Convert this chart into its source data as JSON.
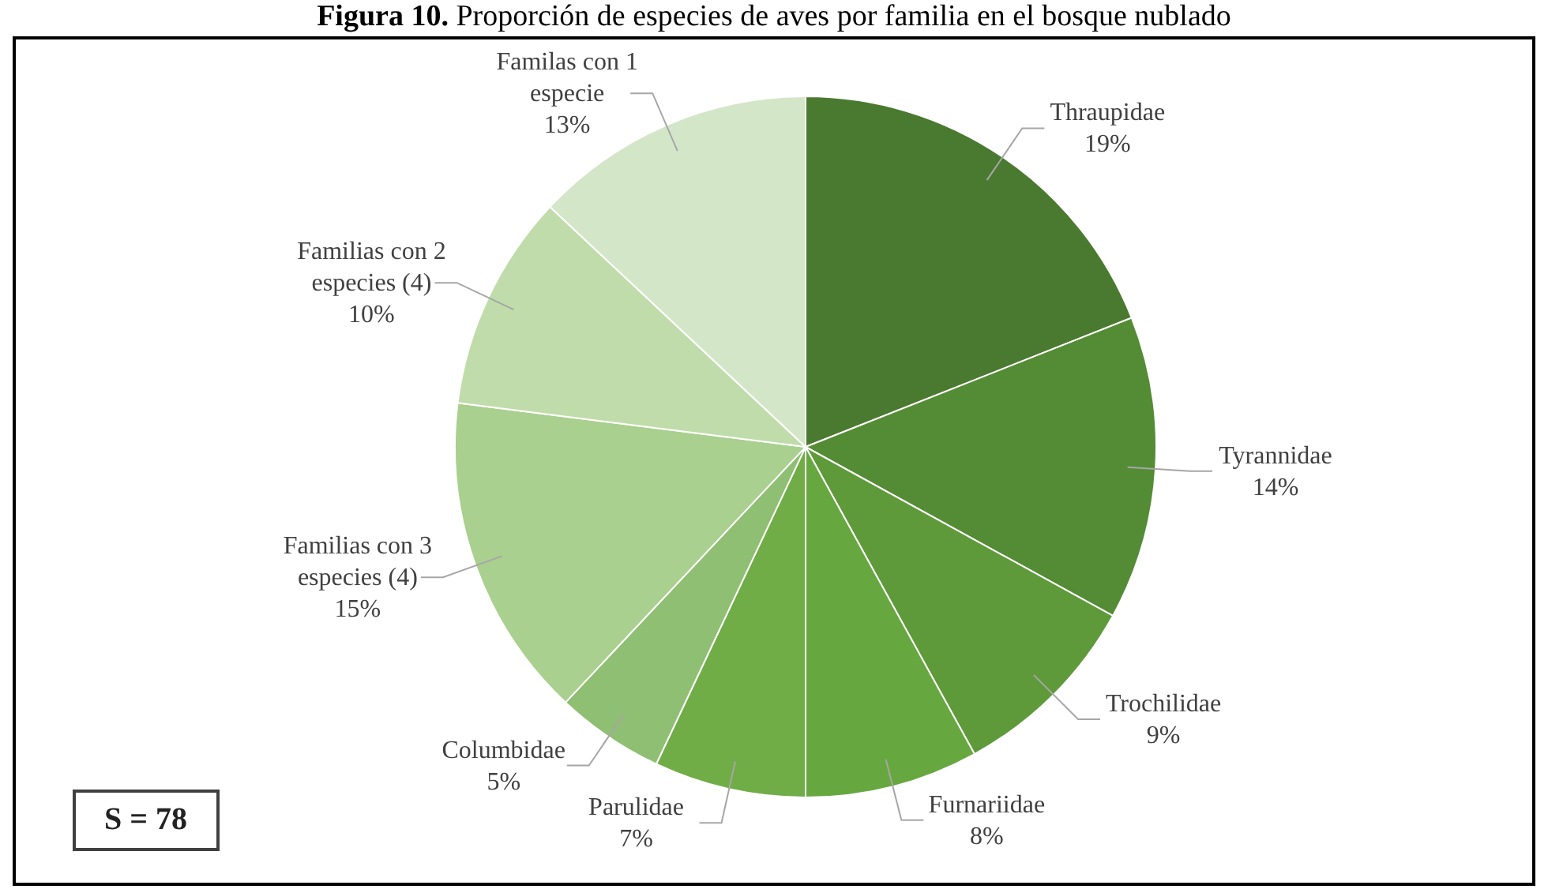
{
  "chart_data": {
    "type": "pie",
    "title": "Figura 10. Proporción de especies de aves por familia en el bosque nublado",
    "categories": [
      "Thraupidae",
      "Tyrannidae",
      "Trochilidae",
      "Furnariidae",
      "Parulidae",
      "Columbidae",
      "Familias con 3 especies (4)",
      "Familias con 2 especies (4)",
      "Familas con 1 especie"
    ],
    "values": [
      19,
      14,
      9,
      8,
      7,
      5,
      15,
      10,
      13
    ],
    "value_labels": [
      "19%",
      "14%",
      "9%",
      "8%",
      "7%",
      "5%",
      "15%",
      "10%",
      "13%"
    ],
    "colors": [
      "#4a7a2f",
      "#548c35",
      "#5e9a3a",
      "#66a83f",
      "#70ad47",
      "#8fbf72",
      "#a9d08e",
      "#c0dcab",
      "#d4e6c8"
    ],
    "annotations": [
      "S = 78"
    ]
  }
}
